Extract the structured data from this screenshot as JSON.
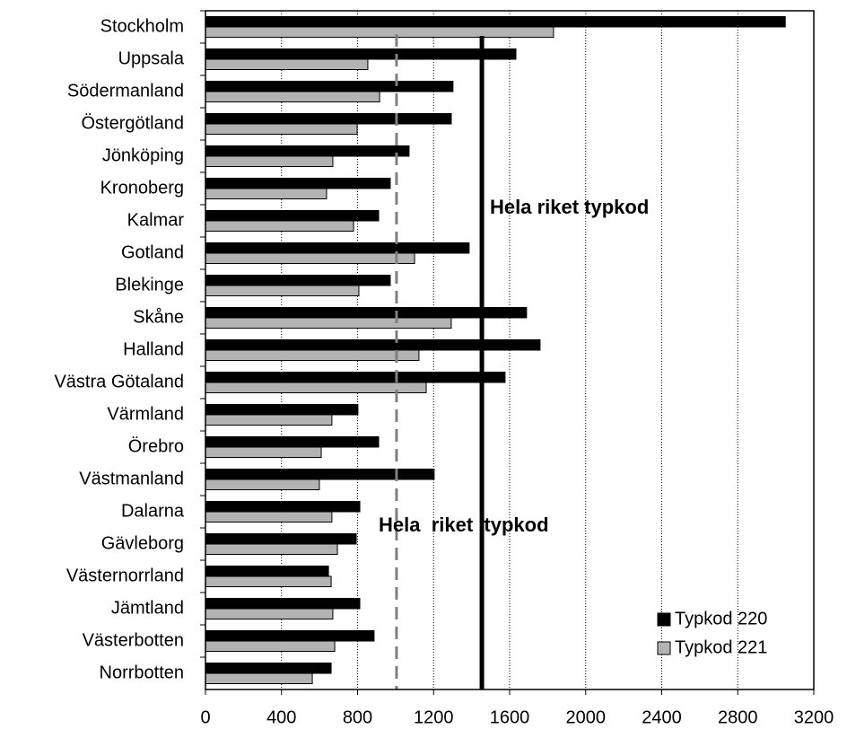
{
  "chart_data": {
    "type": "hbar",
    "categories": [
      "Stockholm",
      "Uppsala",
      "Södermanland",
      "Östergötland",
      "Jönköping",
      "Kronoberg",
      "Kalmar",
      "Gotland",
      "Blekinge",
      "Skåne",
      "Halland",
      "Västra Götaland",
      "Värmland",
      "Örebro",
      "Västmanland",
      "Dalarna",
      "Gävleborg",
      "Västernorrland",
      "Jämtland",
      "Västerbotten",
      "Norrbotten"
    ],
    "series": [
      {
        "name": "Typkod 220",
        "color": "#000000",
        "values": [
          3050,
          1633,
          1302,
          1293,
          1071,
          972,
          911,
          1387,
          972,
          1689,
          1760,
          1576,
          802,
          911,
          1203,
          812,
          793,
          647,
          812,
          887,
          661
        ]
      },
      {
        "name": "Typkod 221",
        "color": "#b3b3b3",
        "values": [
          1831,
          854,
          916,
          798,
          670,
          637,
          779,
          1100,
          807,
          1293,
          1123,
          1161,
          665,
          609,
          599,
          665,
          694,
          661,
          670,
          680,
          562
        ]
      }
    ],
    "xlim": [
      0,
      3200
    ],
    "xticks": [
      0,
      400,
      800,
      1200,
      1600,
      2000,
      2400,
      2800,
      3200
    ],
    "grid": true,
    "legend": "lower right",
    "reference_lines": [
      {
        "value": 1454,
        "color": "#000000",
        "style": "solid",
        "label": "Hela riket typkod"
      },
      {
        "value": 1005,
        "color": "#808080",
        "style": "dashed",
        "label": "Hela  riket  typkod"
      }
    ]
  }
}
